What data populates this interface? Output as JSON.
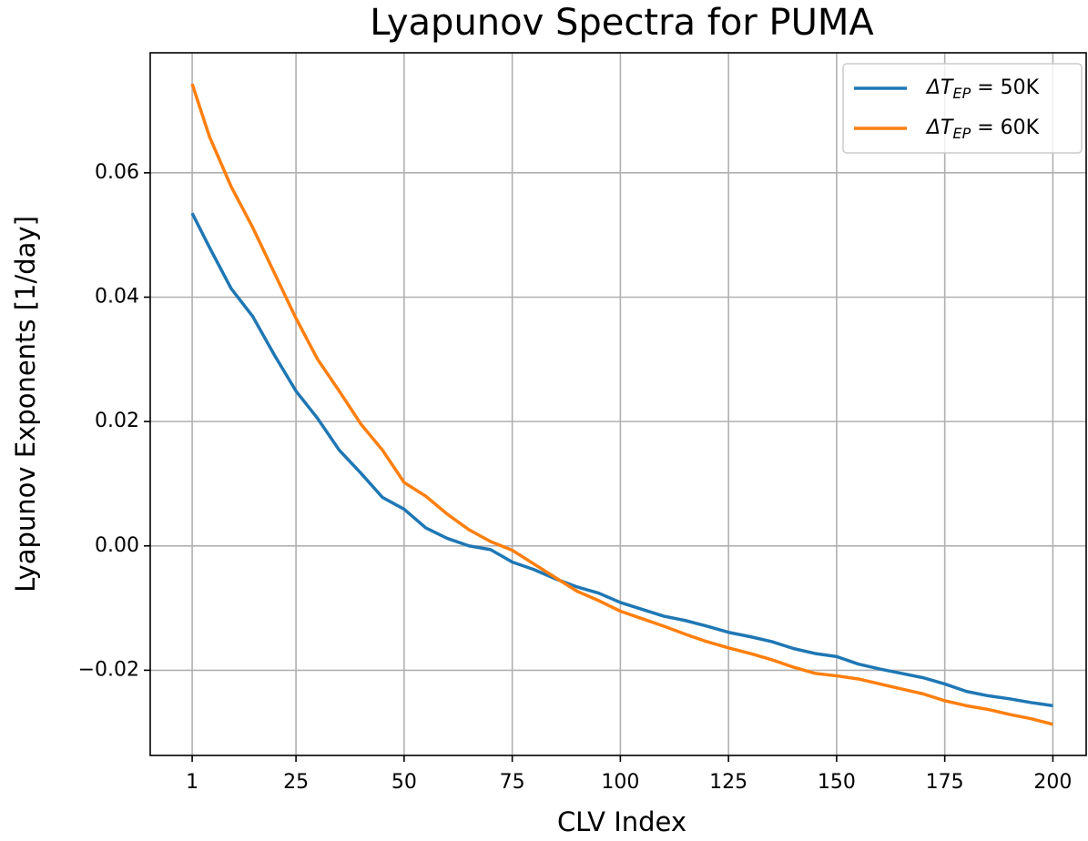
{
  "chart_data": {
    "type": "line",
    "title": "Lyapunov Spectra for PUMA",
    "xlabel": "CLV Index",
    "ylabel": "Lyapunov Exponents [1/day]",
    "x": [
      1,
      5,
      10,
      15,
      20,
      25,
      30,
      35,
      40,
      45,
      50,
      55,
      60,
      65,
      70,
      75,
      80,
      85,
      90,
      95,
      100,
      105,
      110,
      115,
      120,
      125,
      130,
      135,
      140,
      145,
      150,
      155,
      160,
      165,
      170,
      175,
      180,
      185,
      190,
      195,
      200
    ],
    "series": [
      {
        "name": "ΔTEP = 50K",
        "color": "#1f77b4",
        "values": [
          0.0535,
          0.048,
          0.0414,
          0.0369,
          0.0307,
          0.0249,
          0.0205,
          0.0154,
          0.0117,
          0.0078,
          0.0059,
          0.0029,
          0.0012,
          0.0,
          -0.0006,
          -0.0026,
          -0.0038,
          -0.0053,
          -0.0066,
          -0.0076,
          -0.0091,
          -0.0102,
          -0.0113,
          -0.012,
          -0.0129,
          -0.0139,
          -0.0146,
          -0.0154,
          -0.0165,
          -0.0173,
          -0.0178,
          -0.019,
          -0.0198,
          -0.0205,
          -0.0212,
          -0.0222,
          -0.0234,
          -0.0241,
          -0.0246,
          -0.0252,
          -0.0257
        ]
      },
      {
        "name": "ΔTEP = 60K",
        "color": "#ff7f0e",
        "values": [
          0.0743,
          0.0658,
          0.0578,
          0.0512,
          0.0439,
          0.0366,
          0.03,
          0.0249,
          0.0196,
          0.0154,
          0.0102,
          0.008,
          0.0051,
          0.0026,
          0.0007,
          -0.0007,
          -0.0029,
          -0.0051,
          -0.0073,
          -0.0088,
          -0.0105,
          -0.0117,
          -0.0129,
          -0.0142,
          -0.0154,
          -0.0164,
          -0.0173,
          -0.0183,
          -0.0195,
          -0.0205,
          -0.0209,
          -0.0214,
          -0.0222,
          -0.023,
          -0.0238,
          -0.0249,
          -0.0257,
          -0.0263,
          -0.0271,
          -0.0278,
          -0.0287
        ]
      }
    ],
    "xlim": [
      -8.7,
      207.7
    ],
    "xticks": [
      1,
      25,
      50,
      75,
      100,
      125,
      150,
      175,
      200
    ],
    "ylim": [
      -0.0337,
      0.0793
    ],
    "yticks": [
      {
        "value": -0.02,
        "label": "−0.02"
      },
      {
        "value": 0,
        "label": "0.00"
      },
      0.02,
      0.04,
      0.06
    ],
    "grid": true,
    "legend": "upper right"
  }
}
